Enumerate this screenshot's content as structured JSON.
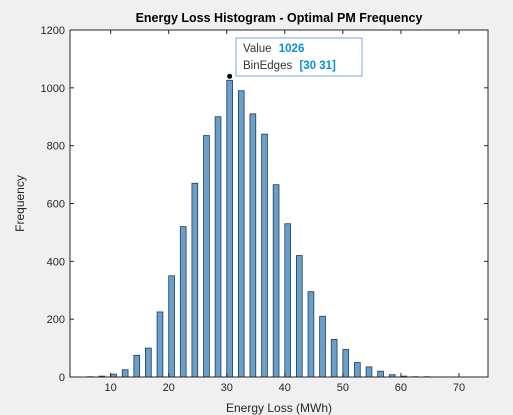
{
  "chart_data": {
    "type": "bar",
    "title": "Energy Loss Histogram - Optimal PM Frequency",
    "xlabel": "Energy Loss (MWh)",
    "ylabel": "Frequency",
    "xlim": [
      3,
      75
    ],
    "ylim": [
      0,
      1200
    ],
    "xticks": [
      10,
      20,
      30,
      40,
      50,
      60,
      70
    ],
    "yticks": [
      0,
      200,
      400,
      600,
      800,
      1000,
      1200
    ],
    "bin_width": 1,
    "bar_color": "#6a9fc9",
    "bar_edge_color": "#1f3b5c",
    "bins": [
      {
        "left": 6,
        "count": 1
      },
      {
        "left": 8,
        "count": 3
      },
      {
        "left": 10,
        "count": 10
      },
      {
        "left": 12,
        "count": 25
      },
      {
        "left": 14,
        "count": 75
      },
      {
        "left": 16,
        "count": 100
      },
      {
        "left": 18,
        "count": 225
      },
      {
        "left": 20,
        "count": 350
      },
      {
        "left": 22,
        "count": 520
      },
      {
        "left": 24,
        "count": 670
      },
      {
        "left": 26,
        "count": 835
      },
      {
        "left": 28,
        "count": 900
      },
      {
        "left": 30,
        "count": 1026
      },
      {
        "left": 32,
        "count": 990
      },
      {
        "left": 34,
        "count": 910
      },
      {
        "left": 36,
        "count": 840
      },
      {
        "left": 38,
        "count": 665
      },
      {
        "left": 40,
        "count": 530
      },
      {
        "left": 42,
        "count": 420
      },
      {
        "left": 44,
        "count": 295
      },
      {
        "left": 46,
        "count": 210
      },
      {
        "left": 48,
        "count": 130
      },
      {
        "left": 50,
        "count": 95
      },
      {
        "left": 52,
        "count": 50
      },
      {
        "left": 54,
        "count": 35
      },
      {
        "left": 56,
        "count": 20
      },
      {
        "left": 58,
        "count": 8
      },
      {
        "left": 60,
        "count": 3
      },
      {
        "left": 62,
        "count": 1
      },
      {
        "left": 64,
        "count": 1
      }
    ],
    "datatip": {
      "value_label": "Value",
      "value": "1026",
      "binedges_label": "BinEdges",
      "binedges": "[30 31]",
      "point_x": 30.5,
      "point_y": 1026
    }
  }
}
